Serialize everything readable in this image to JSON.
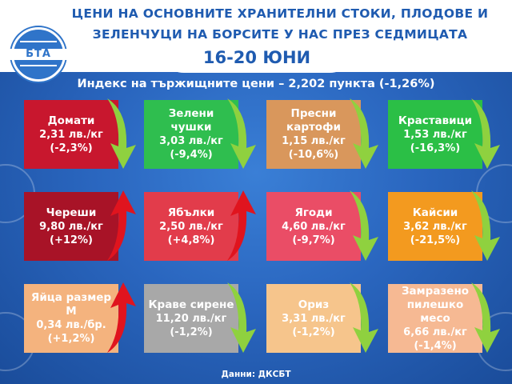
{
  "header": {
    "title_line1": "ЦЕНИ НА ОСНОВНИТЕ ХРАНИТЕЛНИ СТОКИ, ПЛОДОВЕ И",
    "title_line2": "ЗЕЛЕНЧУЦИ НА БОРСИТЕ У НАС ПРЕЗ СЕДМИЦАТА",
    "dates": "16-20 ЮНИ",
    "logo_text": "БТА"
  },
  "index_line": "Индекс на тържищните цени – 2,202 пункта (-1,26%)",
  "items": [
    {
      "name": "Домати",
      "price": "2,31 лв./кг",
      "change": "(-2,3%)",
      "color": "#c8172e",
      "trend": "down"
    },
    {
      "name": "Зелени чушки",
      "price": "3,03 лв./кг",
      "change": "(-9,4%)",
      "color": "#2fbe4f",
      "trend": "down"
    },
    {
      "name": "Пресни картофи",
      "price": "1,15 лв./кг",
      "change": "(-10,6%)",
      "color": "#d9975c",
      "trend": "down"
    },
    {
      "name": "Краставици",
      "price": "1,53 лв./кг",
      "change": "(-16,3%)",
      "color": "#2bbf46",
      "trend": "down"
    },
    {
      "name": "Череши",
      "price": "9,80 лв./кг",
      "change": "(+12%)",
      "color": "#a81327",
      "trend": "up"
    },
    {
      "name": "Ябълки",
      "price": "2,50 лв./кг",
      "change": "(+4,8%)",
      "color": "#e23c4b",
      "trend": "up"
    },
    {
      "name": "Ягоди",
      "price": "4,60 лв./кг",
      "change": "(-9,7%)",
      "color": "#ea4d66",
      "trend": "down"
    },
    {
      "name": "Кайсии",
      "price": "3,62 лв./кг",
      "change": "(-21,5%)",
      "color": "#f39a1f",
      "trend": "down"
    },
    {
      "name": "Яйца размер М",
      "price": "0,34 лв./бр.",
      "change": "(+1,2%)",
      "color": "#f4b37e",
      "trend": "up"
    },
    {
      "name": "Краве сирене",
      "price": "11,20 лв./кг",
      "change": "(-1,2%)",
      "color": "#a8a8a8",
      "trend": "down"
    },
    {
      "name": "Ориз",
      "price": "3,31 лв./кг",
      "change": "(-1,2%)",
      "color": "#f6c58c",
      "trend": "down"
    },
    {
      "name": "Замразено пилешко месо",
      "price": "6,66 лв./кг",
      "change": "(-1,4%)",
      "color": "#f6b993",
      "trend": "down"
    }
  ],
  "arrow_colors": {
    "down": "#8fd13f",
    "up": "#e0141e"
  },
  "footer": "Данни: ДКСБТ"
}
